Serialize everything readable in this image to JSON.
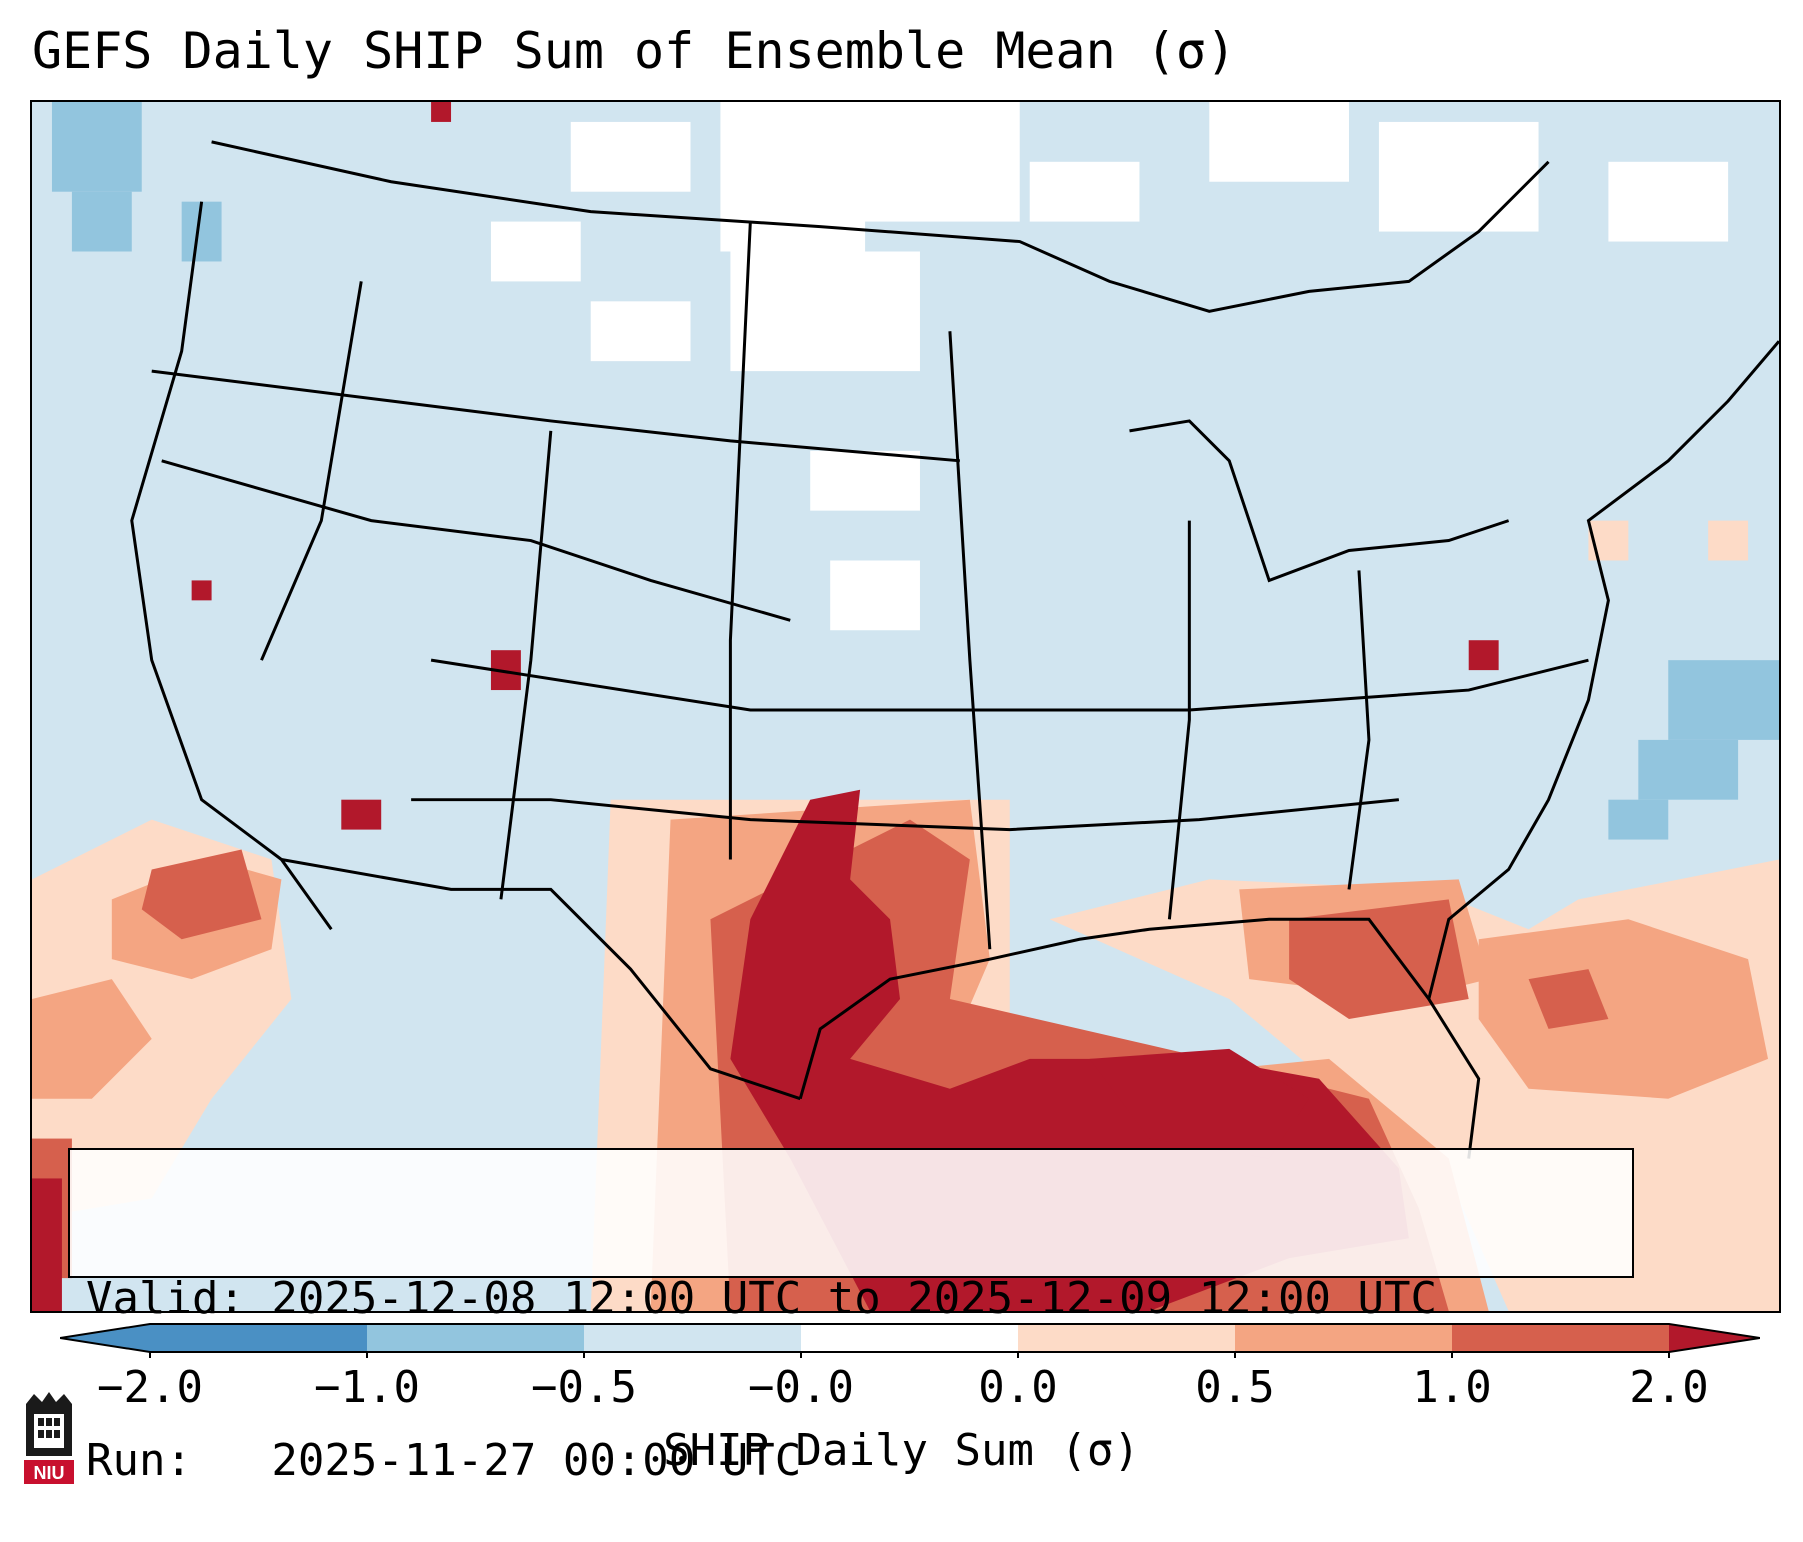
{
  "title": "GEFS Daily SHIP Sum of Ensemble Mean (σ)",
  "info": {
    "valid_line": "Valid: 2025-12-08 12:00 UTC to 2025-12-09 12:00 UTC",
    "run_line": "Run:   2025-11-27 00:00 UTC"
  },
  "colorbar": {
    "label": "SHIP Daily Sum (σ)",
    "tick_labels": [
      "−2.0",
      "−1.0",
      "−0.5",
      "−0.0",
      "0.0",
      "0.5",
      "1.0",
      "2.0"
    ],
    "colors": [
      "#4a90c4",
      "#92c5de",
      "#d1e5f0",
      "#ffffff",
      "#fddbc7",
      "#f4a582",
      "#d6604d",
      "#b2182b"
    ]
  },
  "colors": {
    "land_background": "#d1e5f0",
    "strong_positive": "#b2182b",
    "moderate_positive": "#d6604d",
    "weak_positive": "#f4a582",
    "slight_positive": "#fddbc7",
    "slight_negative": "#92c5de",
    "neutral": "#ffffff"
  },
  "logo": {
    "text": "NIU"
  }
}
